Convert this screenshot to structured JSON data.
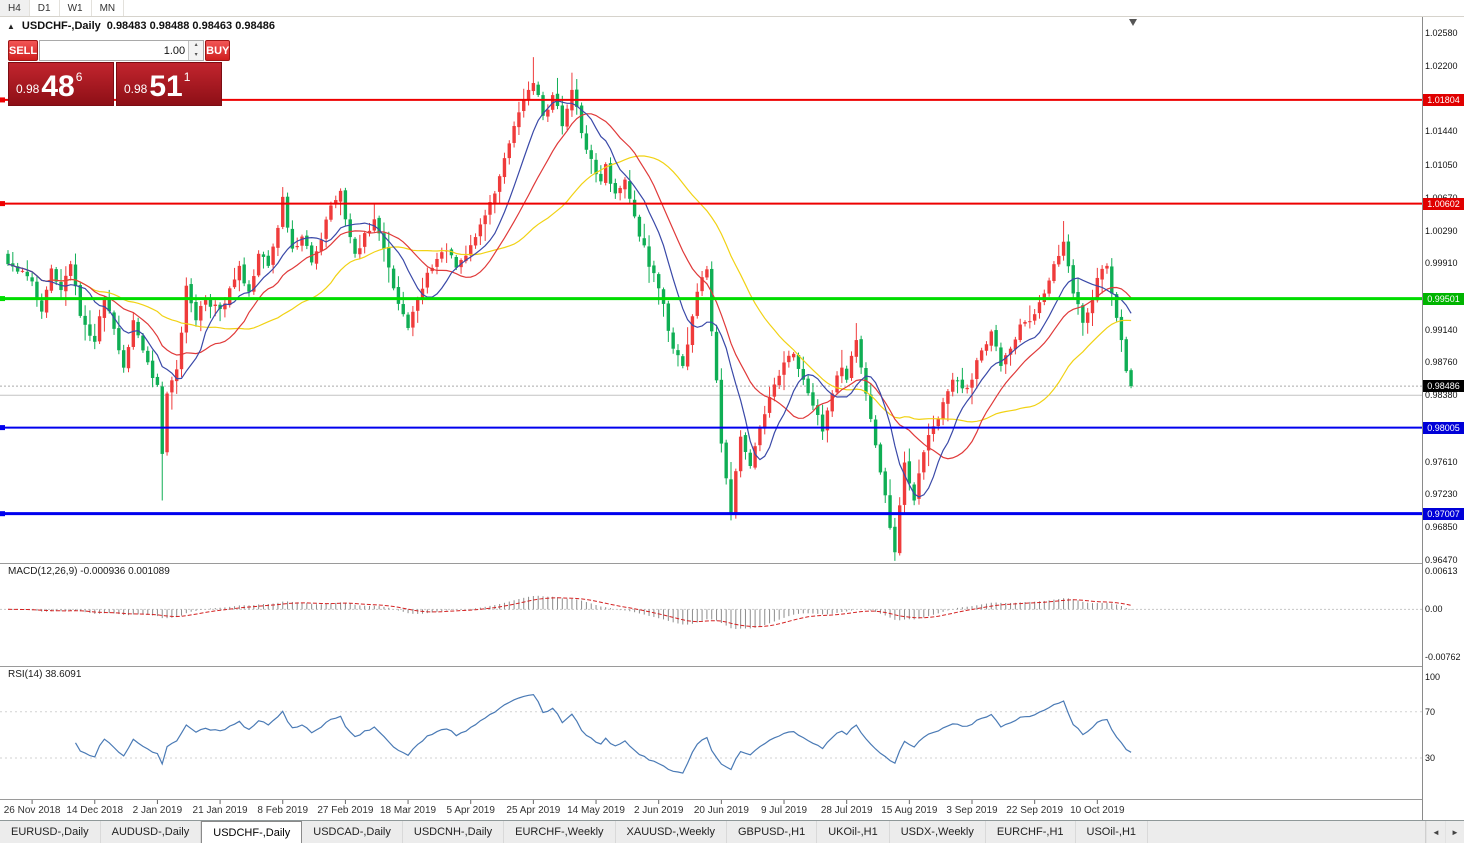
{
  "toolbar": {
    "timeframes": [
      "H4",
      "D1",
      "W1",
      "MN"
    ]
  },
  "chart_header": {
    "symbol_label": "USDCHF-,Daily",
    "ohlc": "0.98483 0.98488 0.98463 0.98486"
  },
  "trade_panel": {
    "sell_label": "SELL",
    "buy_label": "BUY",
    "volume": "1.00",
    "sell_price": {
      "small": "0.98",
      "big": "48",
      "sup": "6"
    },
    "buy_price": {
      "small": "0.98",
      "big": "51",
      "sup": "1"
    }
  },
  "price_axis": {
    "labels": [
      "1.02580",
      "1.02200",
      "1.01440",
      "1.01050",
      "1.00670",
      "1.00290",
      "0.99910",
      "0.99140",
      "0.98760",
      "0.98380",
      "0.97610",
      "0.97230",
      "0.96850",
      "0.96470"
    ],
    "badges": [
      {
        "value": "1.01804",
        "price": 1.01804,
        "color": "#e00000"
      },
      {
        "value": "1.00602",
        "price": 1.00602,
        "color": "#e00000"
      },
      {
        "value": "0.99501",
        "price": 0.99501,
        "color": "#00b400"
      },
      {
        "value": "0.98486",
        "price": 0.98486,
        "color": "#000000"
      },
      {
        "value": "0.98005",
        "price": 0.98005,
        "color": "#0000d8"
      },
      {
        "value": "0.97007",
        "price": 0.97007,
        "color": "#0000d8"
      }
    ]
  },
  "levels": [
    {
      "price": 1.01804,
      "color": "#ee0000",
      "width": 2
    },
    {
      "price": 1.00602,
      "color": "#ee0000",
      "width": 2
    },
    {
      "price": 0.99501,
      "color": "#00dd00",
      "width": 3
    },
    {
      "price": 0.98005,
      "color": "#0000ee",
      "width": 2
    },
    {
      "price": 0.97007,
      "color": "#0000ee",
      "width": 3
    },
    {
      "price": 0.9838,
      "color": "#c4c4c4",
      "width": 1
    },
    {
      "price": 0.98486,
      "color": "#aaaaaa",
      "width": 1,
      "dash": "2 2"
    }
  ],
  "chart_data": {
    "type": "candlestick",
    "symbol": "USDCHF",
    "timeframe": "Daily",
    "y_range": [
      0.9647,
      1.0258
    ],
    "n_candles": 234,
    "up_color": "#ef3b3b",
    "down_color": "#0fae54",
    "x_labels": [
      "26 Nov 2018",
      "14 Dec 2018",
      "2 Jan 2019",
      "21 Jan 2019",
      "8 Feb 2019",
      "27 Feb 2019",
      "18 Mar 2019",
      "5 Apr 2019",
      "25 Apr 2019",
      "14 May 2019",
      "2 Jun 2019",
      "20 Jun 2019",
      "9 Jul 2019",
      "28 Jul 2019",
      "15 Aug 2019",
      "3 Sep 2019",
      "22 Sep 2019",
      "10 Oct 2019"
    ],
    "x_label_indices": [
      5,
      18,
      31,
      44,
      57,
      70,
      83,
      96,
      109,
      122,
      135,
      148,
      161,
      174,
      187,
      200,
      213,
      226
    ],
    "close_anchors": [
      [
        0,
        0.999
      ],
      [
        5,
        0.997
      ],
      [
        7,
        0.9935
      ],
      [
        9,
        0.9985
      ],
      [
        11,
        0.996
      ],
      [
        13,
        0.999
      ],
      [
        15,
        0.993
      ],
      [
        18,
        0.99
      ],
      [
        20,
        0.995
      ],
      [
        22,
        0.9915
      ],
      [
        24,
        0.987
      ],
      [
        26,
        0.9925
      ],
      [
        28,
        0.989
      ],
      [
        30,
        0.9858
      ],
      [
        31,
        0.985
      ],
      [
        32,
        0.977
      ],
      [
        33,
        0.984
      ],
      [
        35,
        0.9868
      ],
      [
        37,
        0.9965
      ],
      [
        39,
        0.9925
      ],
      [
        41,
        0.995
      ],
      [
        44,
        0.9938
      ],
      [
        46,
        0.9962
      ],
      [
        48,
        0.9988
      ],
      [
        50,
        0.9958
      ],
      [
        52,
        1.0002
      ],
      [
        54,
        0.9988
      ],
      [
        56,
        1.0032
      ],
      [
        57,
        1.0068
      ],
      [
        59,
        1.0008
      ],
      [
        61,
        1.0022
      ],
      [
        63,
        0.9992
      ],
      [
        65,
        1.0018
      ],
      [
        67,
        1.0058
      ],
      [
        69,
        1.0075
      ],
      [
        70,
        1.0042
      ],
      [
        72,
        1.0002
      ],
      [
        74,
        1.0026
      ],
      [
        76,
        1.0042
      ],
      [
        78,
        1.0008
      ],
      [
        80,
        0.9962
      ],
      [
        82,
        0.9932
      ],
      [
        83,
        0.9916
      ],
      [
        85,
        0.995
      ],
      [
        87,
        0.998
      ],
      [
        89,
        0.9996
      ],
      [
        91,
        1.0006
      ],
      [
        93,
        0.9986
      ],
      [
        96,
        1.0012
      ],
      [
        98,
        1.0036
      ],
      [
        100,
        1.0062
      ],
      [
        102,
        1.0092
      ],
      [
        104,
        1.013
      ],
      [
        106,
        1.0166
      ],
      [
        108,
        1.0192
      ],
      [
        109,
        1.02
      ],
      [
        111,
        1.0162
      ],
      [
        113,
        1.0186
      ],
      [
        115,
        1.015
      ],
      [
        117,
        1.0192
      ],
      [
        119,
        1.0142
      ],
      [
        121,
        1.0112
      ],
      [
        123,
        1.0086
      ],
      [
        124,
        1.0106
      ],
      [
        126,
        1.0072
      ],
      [
        128,
        1.0088
      ],
      [
        131,
        1.0022
      ],
      [
        135,
        0.9962
      ],
      [
        138,
        0.9892
      ],
      [
        140,
        0.9872
      ],
      [
        143,
        0.9958
      ],
      [
        145,
        0.9984
      ],
      [
        148,
        0.9782
      ],
      [
        150,
        0.97
      ],
      [
        152,
        0.979
      ],
      [
        154,
        0.9756
      ],
      [
        156,
        0.98
      ],
      [
        158,
        0.9836
      ],
      [
        161,
        0.9876
      ],
      [
        163,
        0.9886
      ],
      [
        165,
        0.9856
      ],
      [
        167,
        0.9826
      ],
      [
        169,
        0.9796
      ],
      [
        171,
        0.984
      ],
      [
        173,
        0.987
      ],
      [
        174,
        0.9856
      ],
      [
        176,
        0.9902
      ],
      [
        178,
        0.984
      ],
      [
        180,
        0.978
      ],
      [
        182,
        0.9722
      ],
      [
        184,
        0.9656
      ],
      [
        186,
        0.976
      ],
      [
        188,
        0.9716
      ],
      [
        190,
        0.9772
      ],
      [
        192,
        0.9802
      ],
      [
        194,
        0.983
      ],
      [
        196,
        0.9856
      ],
      [
        198,
        0.9846
      ],
      [
        200,
        0.9856
      ],
      [
        202,
        0.989
      ],
      [
        204,
        0.9912
      ],
      [
        206,
        0.9872
      ],
      [
        208,
        0.9892
      ],
      [
        210,
        0.992
      ],
      [
        213,
        0.9932
      ],
      [
        215,
        0.9956
      ],
      [
        217,
        0.999
      ],
      [
        219,
        1.0016
      ],
      [
        221,
        0.9956
      ],
      [
        223,
        0.9922
      ],
      [
        225,
        0.995
      ],
      [
        226,
        0.9974
      ],
      [
        228,
        0.9988
      ],
      [
        229,
        0.9956
      ],
      [
        231,
        0.9902
      ],
      [
        232,
        0.9866
      ],
      [
        233,
        0.98486
      ]
    ],
    "wick_overrides": [
      [
        32,
        "low",
        0.9716
      ],
      [
        109,
        "high",
        1.023
      ],
      [
        117,
        "high",
        1.0212
      ],
      [
        150,
        "low",
        0.9693
      ],
      [
        184,
        "low",
        0.9646
      ],
      [
        219,
        "high",
        1.004
      ]
    ],
    "ma": [
      {
        "period": 36,
        "color": "#f1d214"
      },
      {
        "period": 18,
        "color": "#e03a3a"
      },
      {
        "period": 9,
        "color": "#3a49a8"
      }
    ]
  },
  "macd_panel": {
    "label": "MACD(12,26,9) -0.000936 0.001089",
    "params": [
      12,
      26,
      9
    ],
    "scale": [
      "0.00613",
      "0.00",
      "-0.00762"
    ],
    "range": [
      -0.00762,
      0.00613
    ]
  },
  "rsi_panel": {
    "label": "RSI(14) 38.6091",
    "period": 14,
    "value": 38.6091,
    "scale": [
      "100",
      "70",
      "30"
    ],
    "levels": [
      70,
      30
    ]
  },
  "bottom_tabs": {
    "active_index": 2,
    "tabs": [
      "EURUSD-,Daily",
      "AUDUSD-,Daily",
      "USDCHF-,Daily",
      "USDCAD-,Daily",
      "USDCNH-,Daily",
      "EURCHF-,Weekly",
      "XAUUSD-,Weekly",
      "GBPUSD-,H1",
      "UKOil-,H1",
      "USDX-,Weekly",
      "EURCHF-,H1",
      "USOil-,H1"
    ],
    "scroll_left": "◄",
    "scroll_right": "►"
  }
}
